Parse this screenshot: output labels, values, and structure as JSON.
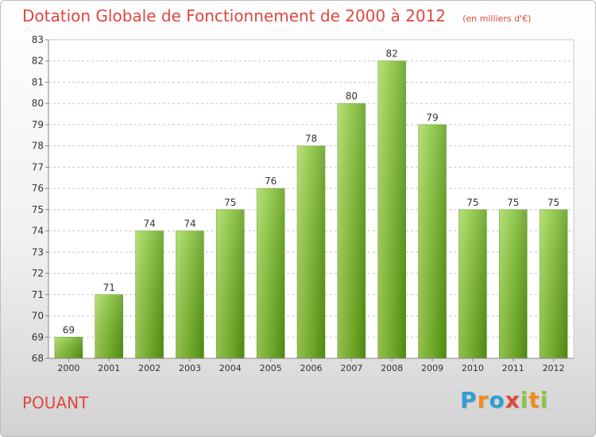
{
  "title": "Dotation Globale de Fonctionnement de 2000 à 2012",
  "unit_note": "(en milliers d'€)",
  "location": "POUANT",
  "brand": {
    "name": "Proxiti",
    "letters": [
      {
        "char": "P",
        "color": "#2e9fd6"
      },
      {
        "char": "r",
        "color": "#f28c1c"
      },
      {
        "char": "o",
        "color": "#2e9fd6"
      },
      {
        "char": "x",
        "color": "#e0463e"
      },
      {
        "char": "i",
        "color": "#8cc63f"
      },
      {
        "char": "t",
        "color": "#f28c1c"
      },
      {
        "char": "i",
        "color": "#8cc63f"
      }
    ]
  },
  "chart_data": {
    "type": "bar",
    "title": "Dotation Globale de Fonctionnement de 2000 à 2012",
    "categories": [
      "2000",
      "2001",
      "2002",
      "2003",
      "2004",
      "2005",
      "2006",
      "2007",
      "2008",
      "2009",
      "2010",
      "2011",
      "2012"
    ],
    "values": [
      69,
      71,
      74,
      74,
      75,
      76,
      78,
      80,
      82,
      79,
      75,
      75,
      75
    ],
    "ylim": [
      68,
      83
    ],
    "yticks": [
      68,
      69,
      70,
      71,
      72,
      73,
      74,
      75,
      76,
      77,
      78,
      79,
      80,
      81,
      82,
      83
    ],
    "grid": true,
    "data_labels": true,
    "colors": {
      "bar": "#7cbd2c",
      "bar_light": "#a8d95c",
      "bar_dark": "#5a9a16",
      "grid": "#c8c8c8",
      "axis_text": "#333333"
    }
  }
}
